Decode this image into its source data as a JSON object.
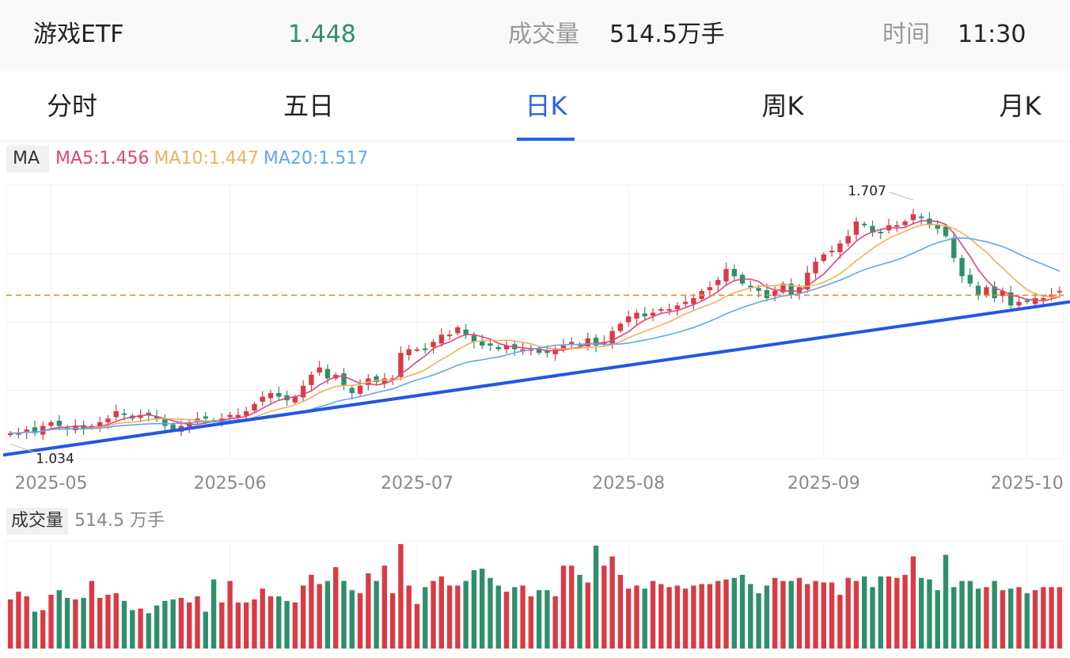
{
  "header": {
    "name": "游戏ETF",
    "price": "1.448",
    "volume_label": "成交量",
    "volume_value": "514.5万手",
    "time_label": "时间",
    "time_value": "11:30"
  },
  "tabs": [
    {
      "label": "分时",
      "active": false
    },
    {
      "label": "五日",
      "active": false
    },
    {
      "label": "日K",
      "active": true
    },
    {
      "label": "周K",
      "active": false
    },
    {
      "label": "月K",
      "active": false
    }
  ],
  "legend": {
    "ma": "MA",
    "ma5": "MA5:1.456",
    "ma10": "MA10:1.447",
    "ma20": "MA20:1.517"
  },
  "volume_legend": {
    "label": "成交量",
    "value": "514.5 万手"
  },
  "colors": {
    "up": "#d93b45",
    "down": "#2f8f6a",
    "ma5": "#e0457b",
    "ma10": "#f0b060",
    "ma20": "#60a8e8",
    "trendline": "#2256e6",
    "current_price_line": "#f08a24",
    "accent": "#2563eb"
  },
  "chart_data": {
    "type": "candlestick",
    "x_ticks": [
      "2025-05",
      "2025-06",
      "2025-07",
      "2025-08",
      "2025-09",
      "2025-10"
    ],
    "price_range": [
      1.0,
      1.75
    ],
    "current_price": 1.448,
    "annotations": {
      "high": "1.707",
      "low": "1.034"
    },
    "trendline": {
      "from": 1.01,
      "to": 1.43
    },
    "grid": true,
    "close": [
      1.07,
      1.07,
      1.08,
      1.07,
      1.09,
      1.1,
      1.09,
      1.08,
      1.09,
      1.08,
      1.09,
      1.1,
      1.11,
      1.13,
      1.12,
      1.11,
      1.12,
      1.12,
      1.11,
      1.09,
      1.08,
      1.09,
      1.1,
      1.11,
      1.11,
      1.1,
      1.11,
      1.12,
      1.12,
      1.13,
      1.15,
      1.17,
      1.18,
      1.17,
      1.16,
      1.17,
      1.2,
      1.23,
      1.25,
      1.22,
      1.23,
      1.2,
      1.18,
      1.2,
      1.22,
      1.21,
      1.22,
      1.22,
      1.29,
      1.3,
      1.3,
      1.3,
      1.32,
      1.34,
      1.34,
      1.36,
      1.34,
      1.32,
      1.31,
      1.31,
      1.3,
      1.31,
      1.3,
      1.3,
      1.3,
      1.29,
      1.29,
      1.3,
      1.31,
      1.32,
      1.31,
      1.33,
      1.31,
      1.32,
      1.35,
      1.37,
      1.39,
      1.4,
      1.39,
      1.4,
      1.41,
      1.41,
      1.42,
      1.43,
      1.44,
      1.46,
      1.47,
      1.49,
      1.52,
      1.5,
      1.48,
      1.47,
      1.46,
      1.44,
      1.46,
      1.48,
      1.45,
      1.47,
      1.51,
      1.54,
      1.56,
      1.57,
      1.59,
      1.61,
      1.65,
      1.64,
      1.62,
      1.62,
      1.64,
      1.64,
      1.65,
      1.67,
      1.66,
      1.64,
      1.63,
      1.61,
      1.55,
      1.5,
      1.48,
      1.45,
      1.47,
      1.44,
      1.46,
      1.42,
      1.43,
      1.43,
      1.44,
      1.44,
      1.45,
      1.46
    ],
    "volume": [
      320,
      370,
      340,
      240,
      250,
      350,
      380,
      330,
      320,
      330,
      440,
      330,
      350,
      360,
      310,
      250,
      260,
      230,
      280,
      310,
      320,
      330,
      300,
      340,
      240,
      450,
      300,
      440,
      300,
      300,
      320,
      390,
      340,
      340,
      310,
      300,
      410,
      480,
      420,
      440,
      530,
      440,
      380,
      360,
      490,
      440,
      540,
      360,
      680,
      410,
      290,
      400,
      440,
      470,
      410,
      410,
      440,
      510,
      520,
      460,
      410,
      370,
      400,
      410,
      340,
      380,
      380,
      340,
      540,
      540,
      480,
      430,
      670,
      540,
      600,
      480,
      390,
      410,
      390,
      440,
      420,
      400,
      410,
      390,
      410,
      420,
      420,
      440,
      450,
      460,
      480,
      420,
      360,
      410,
      460,
      440,
      440,
      460,
      420,
      440,
      430,
      430,
      350,
      460,
      440,
      470,
      400,
      470,
      470,
      460,
      480,
      600,
      460,
      450,
      380,
      610,
      400,
      440,
      440,
      390,
      400,
      440,
      380,
      390,
      400,
      360,
      380,
      400,
      400,
      400
    ]
  }
}
